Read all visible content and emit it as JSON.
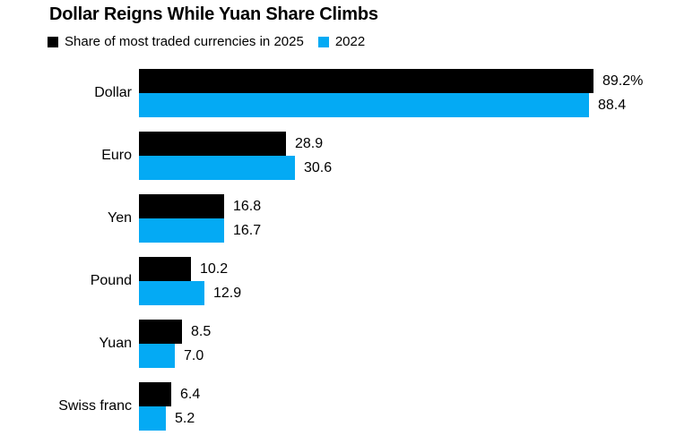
{
  "chart_data": {
    "type": "bar",
    "orientation": "horizontal",
    "title": "Dollar Reigns While Yuan Share Climbs",
    "legend_position": "top-left",
    "grid": false,
    "axes_visible": false,
    "value_unit": "%",
    "legend": [
      {
        "label": "Share of most traded currencies in 2025",
        "color": "#000000"
      },
      {
        "label": "2022",
        "color": "#04aaf4"
      }
    ],
    "categories": [
      "Dollar",
      "Euro",
      "Yen",
      "Pound",
      "Yuan",
      "Swiss franc"
    ],
    "series": [
      {
        "name": "2025",
        "color": "#000000",
        "values": [
          89.2,
          28.9,
          16.8,
          10.2,
          8.5,
          6.4
        ],
        "labels": [
          "89.2%",
          "28.9",
          "16.8",
          "10.2",
          "8.5",
          "6.4"
        ]
      },
      {
        "name": "2022",
        "color": "#04aaf4",
        "values": [
          88.4,
          30.6,
          16.7,
          12.9,
          7.0,
          5.2
        ],
        "labels": [
          "88.4",
          "30.6",
          "16.7",
          "12.9",
          "7.0",
          "5.2"
        ]
      }
    ],
    "xlim": [
      0,
      100
    ]
  }
}
